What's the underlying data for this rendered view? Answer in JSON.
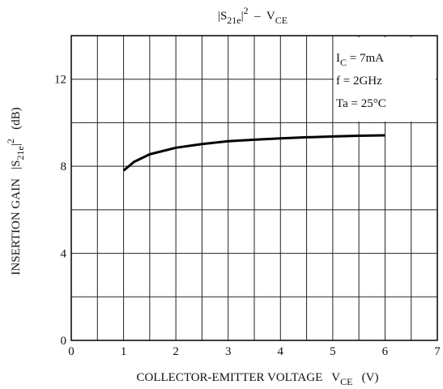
{
  "chart_data": {
    "type": "line",
    "title": [
      {
        "text": "|S"
      },
      {
        "text": "21e",
        "shift": "sub"
      },
      {
        "text": "|"
      },
      {
        "text": "2",
        "shift": "sup"
      },
      {
        "text": "  –  V"
      },
      {
        "text": "CE",
        "shift": "sub"
      }
    ],
    "x_label": [
      {
        "text": "COLLECTOR-EMITTER VOLTAGE   V"
      },
      {
        "text": "CE",
        "shift": "sub"
      },
      {
        "text": "   (V)"
      }
    ],
    "y_label": [
      {
        "text": "INSERTION GAIN   |S"
      },
      {
        "text": "21e",
        "shift": "sub"
      },
      {
        "text": "|"
      },
      {
        "text": "2",
        "shift": "sup"
      },
      {
        "text": "   (dB)"
      }
    ],
    "annotations": [
      [
        {
          "text": "I"
        },
        {
          "text": "C",
          "shift": "sub"
        },
        {
          "text": " = 7mA"
        }
      ],
      [
        {
          "text": "f = 2GHz"
        }
      ],
      [
        {
          "text": "Ta = 25°C"
        }
      ]
    ],
    "x": [
      1,
      1.2,
      1.5,
      2,
      2.5,
      3,
      3.5,
      4,
      4.5,
      5,
      5.5,
      6
    ],
    "series": [
      {
        "color": "#000000",
        "values": [
          7.8,
          8.2,
          8.55,
          8.85,
          9.02,
          9.15,
          9.22,
          9.28,
          9.33,
          9.37,
          9.4,
          9.42
        ]
      }
    ],
    "xlim": [
      0,
      7
    ],
    "xticks": [
      0,
      1,
      2,
      3,
      4,
      5,
      6,
      7
    ],
    "ylim": [
      0,
      14
    ],
    "yticks": [
      0,
      4,
      8,
      12
    ],
    "x_minor_grid": [
      0.5,
      1.5,
      2.5,
      3.5,
      4.5,
      5.5,
      6.5
    ],
    "y_minor_grid": [
      2,
      6,
      10
    ],
    "grid": true
  }
}
